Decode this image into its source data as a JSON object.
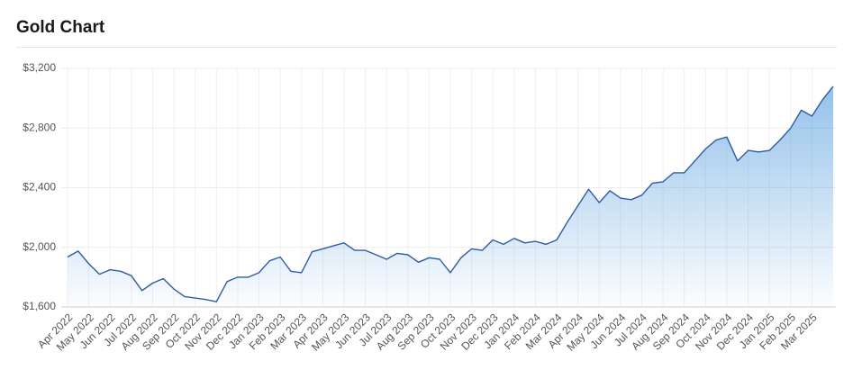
{
  "chart_data": {
    "type": "area",
    "title": "Gold Chart",
    "color": "#2f5ba6",
    "grid": true,
    "ylim": [
      1600,
      3200
    ],
    "yticks": [
      {
        "value": 1600,
        "label": "$1,600"
      },
      {
        "value": 2000,
        "label": "$2,000"
      },
      {
        "value": 2400,
        "label": "$2,400"
      },
      {
        "value": 2800,
        "label": "$2,800"
      },
      {
        "value": 3200,
        "label": "$3,200"
      }
    ],
    "categories": [
      "Apr 2022",
      null,
      "May 2022",
      null,
      "Jun 2022",
      null,
      "Jul 2022",
      null,
      "Aug 2022",
      null,
      "Sep 2022",
      null,
      "Oct 2022",
      null,
      "Nov 2022",
      null,
      "Dec 2022",
      null,
      "Jan 2023",
      null,
      "Feb 2023",
      null,
      "Mar 2023",
      null,
      "Apr 2023",
      null,
      "May 2023",
      null,
      "Jun 2023",
      null,
      "Jul 2023",
      null,
      "Aug 2023",
      null,
      "Sep 2023",
      null,
      "Oct 2023",
      null,
      "Nov 2023",
      null,
      "Dec 2023",
      null,
      "Jan 2024",
      null,
      "Feb 2024",
      null,
      "Mar 2024",
      null,
      "Apr 2024",
      null,
      "May 2024",
      null,
      "Jun 2024",
      null,
      "Jul 2024",
      null,
      "Aug 2024",
      null,
      "Sep 2024",
      null,
      "Oct 2024",
      null,
      "Nov 2024",
      null,
      "Dec 2024",
      null,
      "Jan 2025",
      null,
      "Feb 2025",
      null,
      "Mar 2025",
      null,
      null
    ],
    "values": [
      1935,
      1975,
      1890,
      1820,
      1850,
      1840,
      1810,
      1710,
      1760,
      1790,
      1720,
      1670,
      1660,
      1650,
      1635,
      1770,
      1800,
      1800,
      1830,
      1910,
      1935,
      1840,
      1830,
      1970,
      1990,
      2010,
      2030,
      1980,
      1980,
      1950,
      1920,
      1960,
      1950,
      1900,
      1930,
      1920,
      1830,
      1930,
      1990,
      1980,
      2050,
      2020,
      2060,
      2030,
      2040,
      2020,
      2050,
      2170,
      2280,
      2390,
      2300,
      2380,
      2330,
      2320,
      2350,
      2430,
      2440,
      2500,
      2500,
      2580,
      2660,
      2720,
      2740,
      2580,
      2650,
      2640,
      2650,
      2720,
      2800,
      2920,
      2880,
      2990,
      3080
    ]
  }
}
